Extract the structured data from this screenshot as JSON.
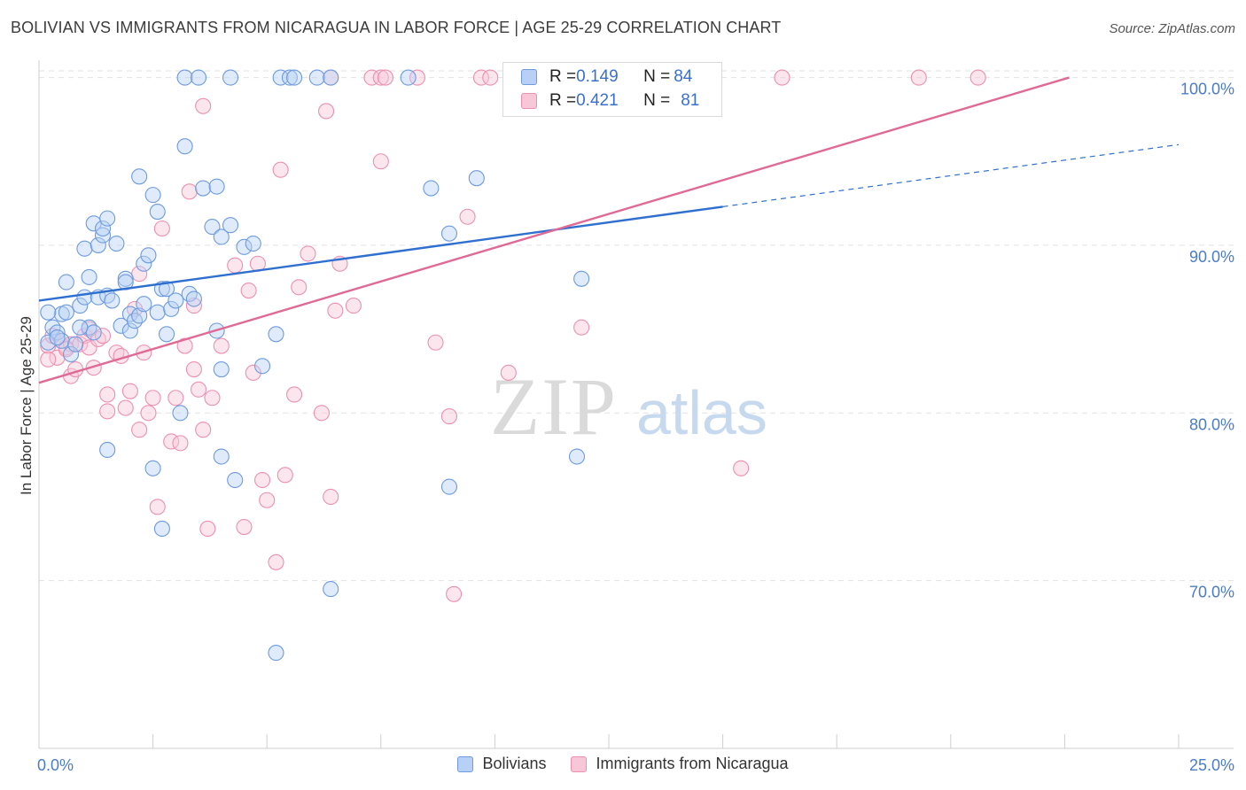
{
  "title": "BOLIVIAN VS IMMIGRANTS FROM NICARAGUA IN LABOR FORCE | AGE 25-29 CORRELATION CHART",
  "source": "Source: ZipAtlas.com",
  "watermark": {
    "zip": "ZIP",
    "atlas": "atlas"
  },
  "colors": {
    "blue": "#6d9be0",
    "blue_fill": "#b8d0f5",
    "pink": "#ee8fb0",
    "pink_fill": "#f8c7d7",
    "blue_line": "#2f6fd0",
    "pink_line": "#e06a96",
    "axis_text": "#4a7cc9"
  },
  "legend_top": [
    {
      "r_label": "R = ",
      "r_value": "0.149",
      "n_label": "N = ",
      "n_value": "84"
    },
    {
      "r_label": "R = ",
      "r_value": "0.421",
      "n_label": "N = ",
      "n_value": "81"
    }
  ],
  "legend_bottom": {
    "series1": "Bolivians",
    "series2": "Immigrants from Nicaragua"
  },
  "chart_data": {
    "type": "scatter",
    "title": "BOLIVIAN VS IMMIGRANTS FROM NICARAGUA IN LABOR FORCE | AGE 25-29 CORRELATION CHART",
    "xlabel": "",
    "ylabel": "In Labor Force | Age 25-29",
    "xlim": [
      0,
      25
    ],
    "ylim": [
      60,
      100.4
    ],
    "x_tick_labels": [
      "0.0%",
      "25.0%"
    ],
    "y_ticks": [
      70,
      80,
      90,
      100
    ],
    "y_tick_labels": [
      "70.0%",
      "80.0%",
      "90.0%",
      "100.0%"
    ],
    "grid": true,
    "legend_position": "top-center",
    "series": [
      {
        "name": "Bolivians",
        "r": 0.149,
        "n": 84,
        "trend": {
          "x0": 0,
          "y0": 86.7,
          "x1": 15,
          "y1": 92.3,
          "dashed_to_x": 25,
          "dashed_to_y": 96.0
        },
        "points": [
          [
            0.2,
            84.2
          ],
          [
            0.3,
            85.1
          ],
          [
            0.4,
            84.8
          ],
          [
            0.5,
            84.3
          ],
          [
            0.5,
            85.9
          ],
          [
            0.6,
            86.0
          ],
          [
            0.7,
            83.5
          ],
          [
            0.8,
            84.1
          ],
          [
            0.6,
            87.8
          ],
          [
            0.9,
            86.4
          ],
          [
            1.0,
            86.9
          ],
          [
            1.0,
            89.8
          ],
          [
            1.1,
            85.1
          ],
          [
            1.1,
            88.1
          ],
          [
            1.2,
            84.8
          ],
          [
            1.2,
            91.3
          ],
          [
            1.3,
            90.0
          ],
          [
            1.3,
            86.9
          ],
          [
            1.4,
            90.6
          ],
          [
            1.4,
            91.0
          ],
          [
            1.5,
            87.0
          ],
          [
            1.5,
            91.6
          ],
          [
            1.6,
            86.7
          ],
          [
            1.7,
            90.1
          ],
          [
            1.8,
            85.2
          ],
          [
            1.9,
            88.0
          ],
          [
            1.9,
            87.8
          ],
          [
            2.0,
            85.9
          ],
          [
            2.0,
            84.9
          ],
          [
            2.1,
            85.5
          ],
          [
            2.2,
            85.8
          ],
          [
            2.2,
            94.1
          ],
          [
            2.3,
            88.9
          ],
          [
            2.3,
            86.5
          ],
          [
            2.4,
            89.4
          ],
          [
            2.5,
            93.0
          ],
          [
            2.6,
            92.0
          ],
          [
            2.6,
            86.0
          ],
          [
            2.7,
            87.4
          ],
          [
            2.8,
            84.7
          ],
          [
            2.8,
            87.4
          ],
          [
            2.9,
            86.2
          ],
          [
            3.0,
            86.7
          ],
          [
            3.1,
            80.0
          ],
          [
            3.2,
            95.9
          ],
          [
            3.3,
            87.1
          ],
          [
            3.4,
            86.8
          ],
          [
            3.6,
            93.4
          ],
          [
            3.8,
            91.1
          ],
          [
            3.9,
            93.5
          ],
          [
            3.9,
            84.9
          ],
          [
            4.0,
            90.5
          ],
          [
            4.0,
            82.6
          ],
          [
            4.2,
            91.2
          ],
          [
            4.5,
            89.9
          ],
          [
            4.7,
            90.1
          ],
          [
            4.9,
            82.8
          ],
          [
            5.2,
            84.7
          ],
          [
            1.5,
            77.8
          ],
          [
            2.5,
            76.7
          ],
          [
            2.7,
            73.1
          ],
          [
            4.0,
            77.4
          ],
          [
            4.3,
            76.0
          ],
          [
            5.2,
            65.7
          ],
          [
            6.4,
            69.5
          ],
          [
            3.2,
            100.0
          ],
          [
            3.5,
            100.0
          ],
          [
            4.2,
            100.0
          ],
          [
            5.3,
            100.0
          ],
          [
            5.5,
            100.0
          ],
          [
            5.6,
            100.0
          ],
          [
            6.1,
            100.0
          ],
          [
            6.4,
            100.0
          ],
          [
            8.1,
            100.0
          ],
          [
            11.2,
            100.0
          ],
          [
            8.6,
            93.4
          ],
          [
            9.0,
            90.7
          ],
          [
            9.6,
            94.0
          ],
          [
            11.9,
            88.0
          ],
          [
            11.8,
            77.4
          ],
          [
            9.0,
            75.6
          ],
          [
            0.2,
            86.0
          ],
          [
            0.4,
            84.5
          ],
          [
            0.9,
            85.1
          ]
        ]
      },
      {
        "name": "Immigrants from Nicaragua",
        "r": 0.421,
        "n": 81,
        "trend": {
          "x0": 0,
          "y0": 81.8,
          "x1": 22.6,
          "y1": 100.0
        },
        "points": [
          [
            0.2,
            84.0
          ],
          [
            0.3,
            84.6
          ],
          [
            0.4,
            83.3
          ],
          [
            0.5,
            84.3
          ],
          [
            0.6,
            83.9
          ],
          [
            0.7,
            84.1
          ],
          [
            0.7,
            82.2
          ],
          [
            0.8,
            82.6
          ],
          [
            0.9,
            84.1
          ],
          [
            1.0,
            84.6
          ],
          [
            1.1,
            83.9
          ],
          [
            1.2,
            82.7
          ],
          [
            1.3,
            84.4
          ],
          [
            1.5,
            81.1
          ],
          [
            1.5,
            80.1
          ],
          [
            1.7,
            83.6
          ],
          [
            1.8,
            83.4
          ],
          [
            1.9,
            80.3
          ],
          [
            2.0,
            81.3
          ],
          [
            2.1,
            86.2
          ],
          [
            2.2,
            88.3
          ],
          [
            2.2,
            79.0
          ],
          [
            2.3,
            83.6
          ],
          [
            2.4,
            80.0
          ],
          [
            2.5,
            80.9
          ],
          [
            2.6,
            74.4
          ],
          [
            2.7,
            91.0
          ],
          [
            2.9,
            78.3
          ],
          [
            3.0,
            80.9
          ],
          [
            3.1,
            78.2
          ],
          [
            3.2,
            84.0
          ],
          [
            3.3,
            93.2
          ],
          [
            3.4,
            82.6
          ],
          [
            3.4,
            86.4
          ],
          [
            3.5,
            81.4
          ],
          [
            3.6,
            79.0
          ],
          [
            3.7,
            73.1
          ],
          [
            3.8,
            80.9
          ],
          [
            4.0,
            84.0
          ],
          [
            4.3,
            88.8
          ],
          [
            4.5,
            73.2
          ],
          [
            4.6,
            87.3
          ],
          [
            4.7,
            82.4
          ],
          [
            4.8,
            88.9
          ],
          [
            4.9,
            76.0
          ],
          [
            5.0,
            74.8
          ],
          [
            5.2,
            71.1
          ],
          [
            5.3,
            94.5
          ],
          [
            5.4,
            76.3
          ],
          [
            5.6,
            81.1
          ],
          [
            5.7,
            87.5
          ],
          [
            5.9,
            89.5
          ],
          [
            6.2,
            80.0
          ],
          [
            6.3,
            98.0
          ],
          [
            6.4,
            75.0
          ],
          [
            6.5,
            86.1
          ],
          [
            6.6,
            88.9
          ],
          [
            6.9,
            86.4
          ],
          [
            7.5,
            95.0
          ],
          [
            8.7,
            84.2
          ],
          [
            9.0,
            79.8
          ],
          [
            9.1,
            69.2
          ],
          [
            9.4,
            91.7
          ],
          [
            10.3,
            82.4
          ],
          [
            11.9,
            85.1
          ],
          [
            15.4,
            76.7
          ],
          [
            3.6,
            98.3
          ],
          [
            6.4,
            100.0
          ],
          [
            7.3,
            100.0
          ],
          [
            7.5,
            100.0
          ],
          [
            7.6,
            100.0
          ],
          [
            8.3,
            100.0
          ],
          [
            9.7,
            100.0
          ],
          [
            9.9,
            100.0
          ],
          [
            16.3,
            100.0
          ],
          [
            19.3,
            100.0
          ],
          [
            20.6,
            100.0
          ],
          [
            0.2,
            83.2
          ],
          [
            0.6,
            83.8
          ],
          [
            1.1,
            85.0
          ],
          [
            1.4,
            84.6
          ]
        ]
      }
    ]
  }
}
